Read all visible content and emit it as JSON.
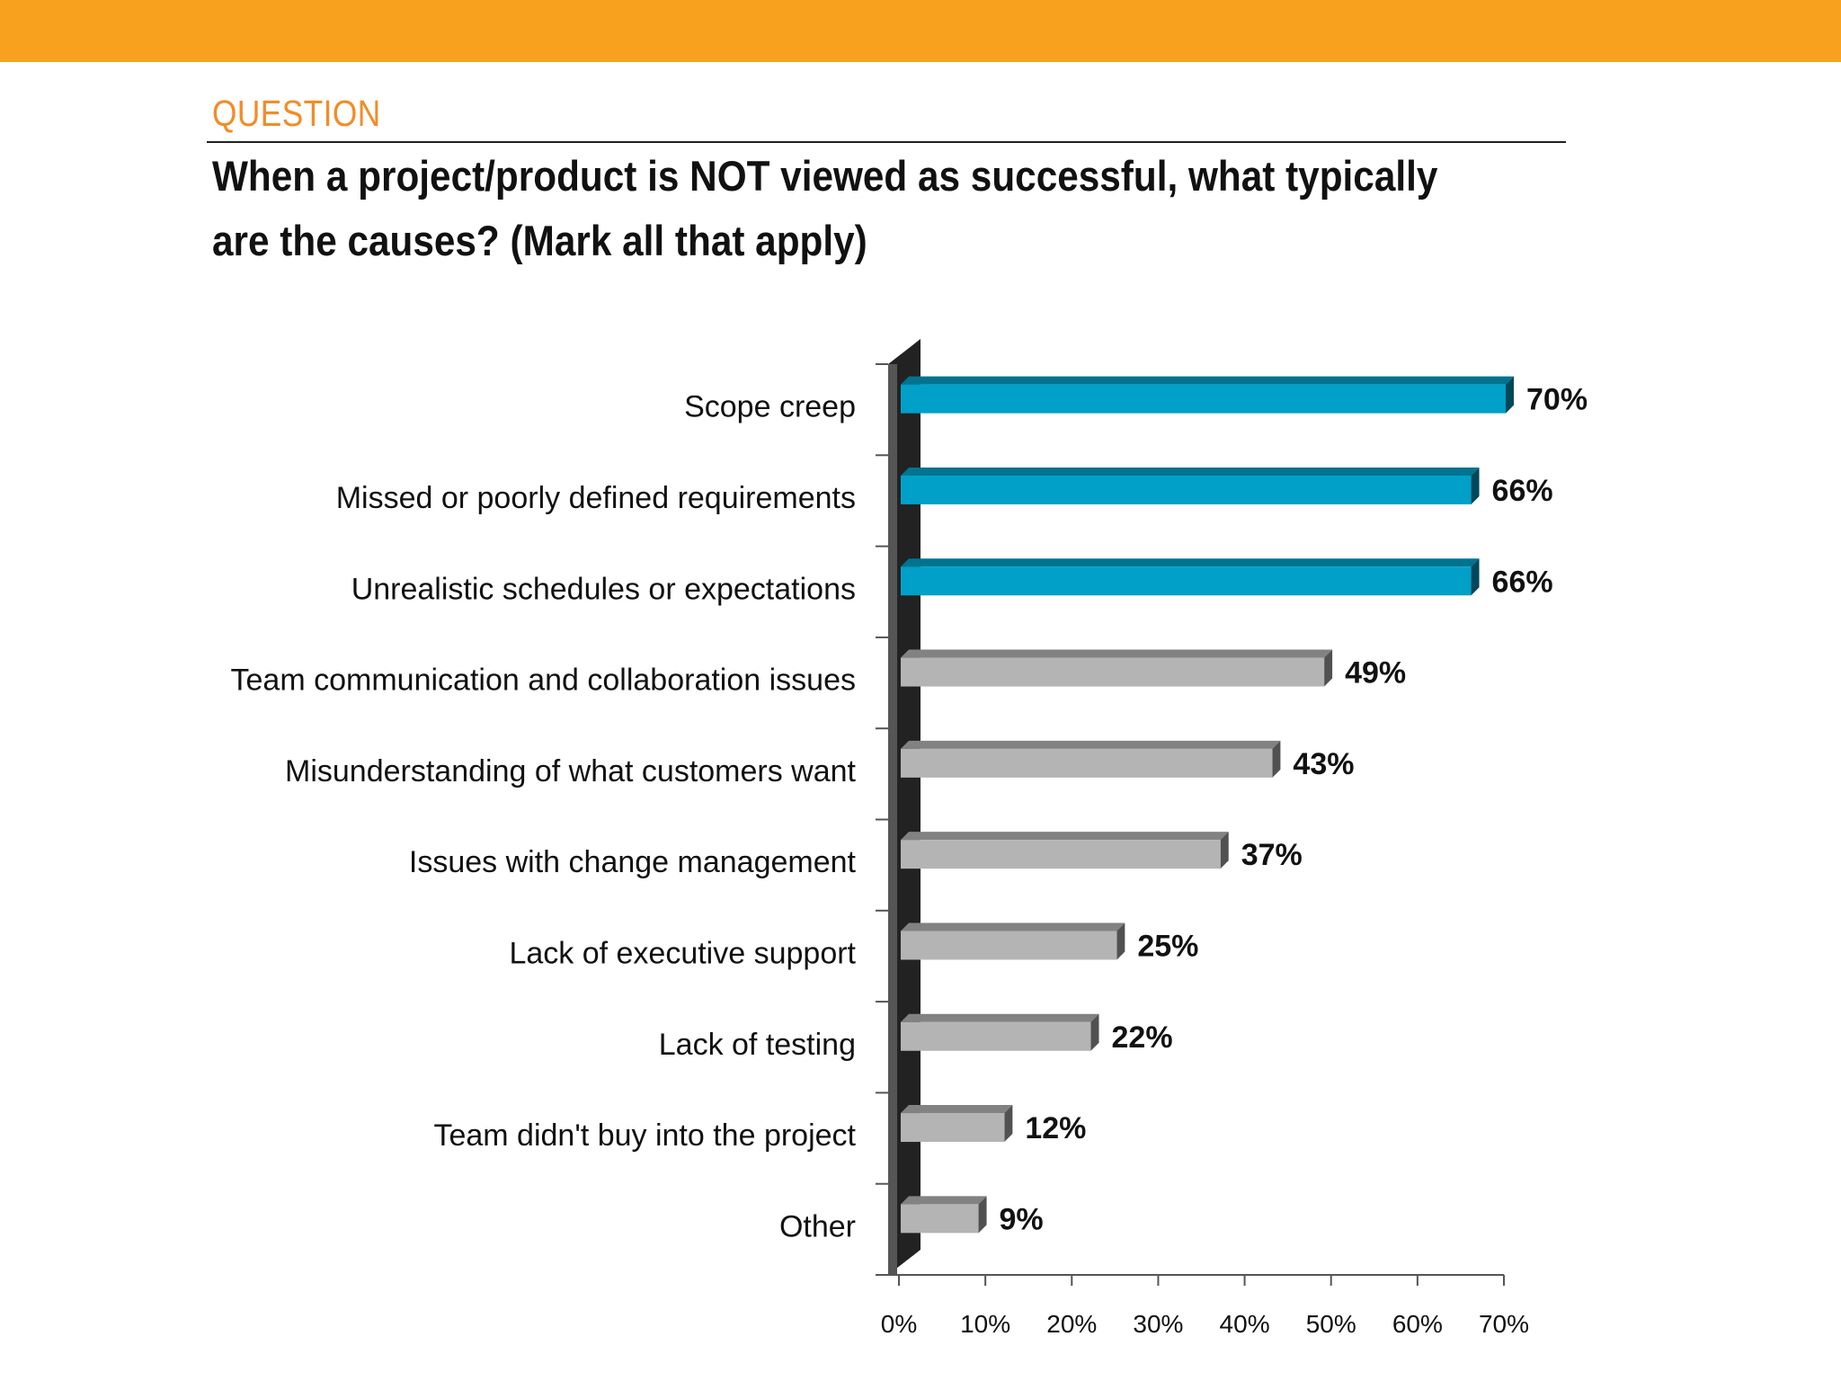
{
  "header": {
    "section_label": "QUESTION",
    "question": "When a project/product is NOT viewed as successful, what typically are the causes? (Mark all that apply)"
  },
  "colors": {
    "top_band": "#f7a11f",
    "section_label": "#f28c28",
    "highlight_bar": "#00a0c8",
    "default_bar": "#b4b4b4",
    "axis_wall": "#222222"
  },
  "chart_data": {
    "type": "bar",
    "orientation": "horizontal",
    "categories": [
      "Scope creep",
      "Missed or poorly defined requirements",
      "Unrealistic schedules or expectations",
      "Team communication and collaboration issues",
      "Misunderstanding of what customers want",
      "Issues with change management",
      "Lack of executive support",
      "Lack of testing",
      "Team didn't buy into the project",
      "Other"
    ],
    "values": [
      70,
      66,
      66,
      49,
      43,
      37,
      25,
      22,
      12,
      9
    ],
    "value_labels": [
      "70%",
      "66%",
      "66%",
      "49%",
      "43%",
      "37%",
      "25%",
      "22%",
      "12%",
      "9%"
    ],
    "highlighted": [
      true,
      true,
      true,
      false,
      false,
      false,
      false,
      false,
      false,
      false
    ],
    "xlim": [
      0,
      70
    ],
    "xticks": [
      0,
      10,
      20,
      30,
      40,
      50,
      60,
      70
    ],
    "xtick_labels": [
      "0%",
      "10%",
      "20%",
      "30%",
      "40%",
      "50%",
      "60%",
      "70%"
    ],
    "grid": false,
    "legend": "none"
  }
}
